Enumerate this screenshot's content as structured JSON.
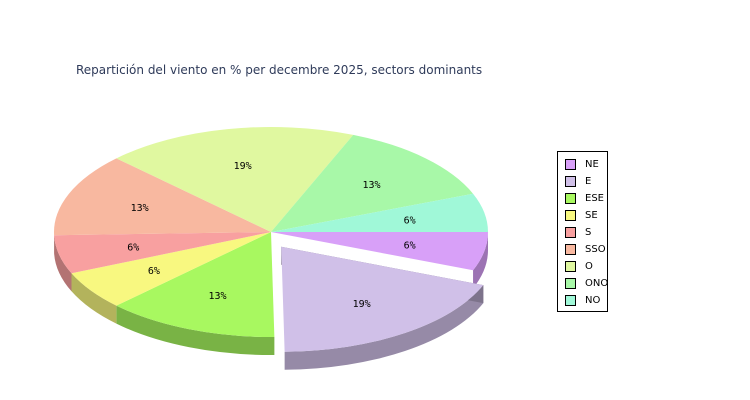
{
  "chart_data": {
    "type": "pie",
    "title": "Repartición del viento en % per decembre 2025, sectors dominants",
    "slices": [
      {
        "name": "NE",
        "value": 6,
        "label": "6%",
        "color": "#d8a0f8",
        "exploded": false
      },
      {
        "name": "E",
        "value": 19,
        "label": "19%",
        "color": "#d0c0e8",
        "exploded": true
      },
      {
        "name": "ESE",
        "value": 13,
        "label": "13%",
        "color": "#a8f860",
        "exploded": false
      },
      {
        "name": "SE",
        "value": 6,
        "label": "6%",
        "color": "#f8f880",
        "exploded": false
      },
      {
        "name": "S",
        "value": 6,
        "label": "6%",
        "color": "#f8a0a0",
        "exploded": false
      },
      {
        "name": "SSO",
        "value": 13,
        "label": "13%",
        "color": "#f8b8a0",
        "exploded": false
      },
      {
        "name": "O",
        "value": 19,
        "label": "19%",
        "color": "#e0f8a0",
        "exploded": false
      },
      {
        "name": "ONO",
        "value": 13,
        "label": "13%",
        "color": "#a8f8a8",
        "exploded": false
      },
      {
        "name": "NO",
        "value": 6,
        "label": "6%",
        "color": "#a0f8d8",
        "exploded": false
      }
    ],
    "legend_position": "right"
  }
}
